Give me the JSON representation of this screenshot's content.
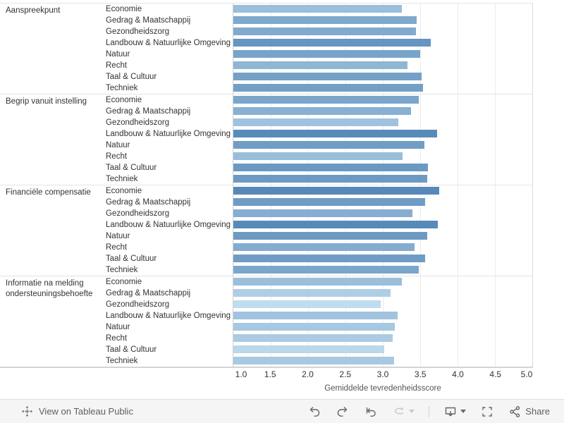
{
  "chart_data": {
    "type": "bar",
    "orientation": "horizontal",
    "xlabel": "Gemiddelde tevredenheidsscore",
    "xlim": [
      1.0,
      5.0
    ],
    "x_ticks": [
      "1.0",
      "1.5",
      "2.0",
      "2.5",
      "3.0",
      "3.5",
      "4.0",
      "4.5",
      "5.0"
    ],
    "grid": true,
    "color_encoding": {
      "note": "sequential blues, darker = higher score",
      "low_value": 2.95,
      "low_color": "#C3DEF0",
      "high_value": 3.75,
      "high_color": "#5689B8"
    },
    "groups": [
      {
        "label": "Aanspreekpunt",
        "items": [
          {
            "label": "Economie",
            "value": 3.25,
            "color": "#9ABEDB"
          },
          {
            "label": "Gedrag & Maatschappij",
            "value": 3.45,
            "color": "#7FA9CD"
          },
          {
            "label": "Gezondheidszorg",
            "value": 3.44,
            "color": "#80AACE"
          },
          {
            "label": "Landbouw & Natuurlijke Omgeving",
            "value": 3.64,
            "color": "#6595C0"
          },
          {
            "label": "Natuur",
            "value": 3.5,
            "color": "#78A4CA"
          },
          {
            "label": "Recht",
            "value": 3.33,
            "color": "#8FB6D5"
          },
          {
            "label": "Taal & Cultuur",
            "value": 3.52,
            "color": "#75A1C8"
          },
          {
            "label": "Techniek",
            "value": 3.54,
            "color": "#739FC7"
          }
        ]
      },
      {
        "label": "Begrip vanuit instelling",
        "items": [
          {
            "label": "Economie",
            "value": 3.48,
            "color": "#7BA6CB"
          },
          {
            "label": "Gedrag & Maatschappij",
            "value": 3.38,
            "color": "#88B0D2"
          },
          {
            "label": "Gezondheidszorg",
            "value": 3.21,
            "color": "#A0C2DE"
          },
          {
            "label": "Landbouw & Natuurlijke Omgeving",
            "value": 3.73,
            "color": "#598BB9"
          },
          {
            "label": "Natuur",
            "value": 3.56,
            "color": "#709DC5"
          },
          {
            "label": "Recht",
            "value": 3.26,
            "color": "#99BDDA"
          },
          {
            "label": "Taal & Cultuur",
            "value": 3.6,
            "color": "#6A99C3"
          },
          {
            "label": "Techniek",
            "value": 3.59,
            "color": "#6C9AC3"
          }
        ]
      },
      {
        "label": "Financiële compensatie",
        "items": [
          {
            "label": "Economie",
            "value": 3.75,
            "color": "#5689B8"
          },
          {
            "label": "Gedrag & Maatschappij",
            "value": 3.57,
            "color": "#6F9CC5"
          },
          {
            "label": "Gezondheidszorg",
            "value": 3.4,
            "color": "#86AED1"
          },
          {
            "label": "Landbouw & Natuurlijke Omgeving",
            "value": 3.74,
            "color": "#578AB9"
          },
          {
            "label": "Natuur",
            "value": 3.59,
            "color": "#6C9AC3"
          },
          {
            "label": "Recht",
            "value": 3.42,
            "color": "#83ACCF"
          },
          {
            "label": "Taal & Cultuur",
            "value": 3.57,
            "color": "#6F9CC5"
          },
          {
            "label": "Techniek",
            "value": 3.48,
            "color": "#7BA6CB"
          }
        ]
      },
      {
        "label": "Informatie na melding ondersteuningsbehoefte",
        "items": [
          {
            "label": "Economie",
            "value": 3.25,
            "color": "#9ABEDB"
          },
          {
            "label": "Gedrag & Maatschappij",
            "value": 3.1,
            "color": "#AFCEE6"
          },
          {
            "label": "Gezondheidszorg",
            "value": 2.97,
            "color": "#C0DCEF"
          },
          {
            "label": "Landbouw & Natuurlijke Omgeving",
            "value": 3.2,
            "color": "#A1C3DF"
          },
          {
            "label": "Natuur",
            "value": 3.16,
            "color": "#A6C8E1"
          },
          {
            "label": "Recht",
            "value": 3.13,
            "color": "#ABCBE3"
          },
          {
            "label": "Taal & Cultuur",
            "value": 3.02,
            "color": "#BAD7EB"
          },
          {
            "label": "Techniek",
            "value": 3.15,
            "color": "#A8C9E2"
          }
        ]
      }
    ]
  },
  "toolbar": {
    "view_label": "View on Tableau Public",
    "share_label": "Share",
    "icons": [
      "tableau-logo",
      "undo",
      "redo",
      "reset",
      "refresh",
      "refresh-caret",
      "download-device",
      "download-caret",
      "fullscreen",
      "share"
    ]
  },
  "colors": {
    "divider": "#e4e4e4",
    "axis_line": "#d4d4d4",
    "gridline": "#ebebeb",
    "text": "#333333",
    "axis_title_text": "#555555",
    "toolbar_bg": "#f5f5f5",
    "toolbar_icon": "#666666",
    "toolbar_icon_disabled": "#c9c9c9"
  }
}
